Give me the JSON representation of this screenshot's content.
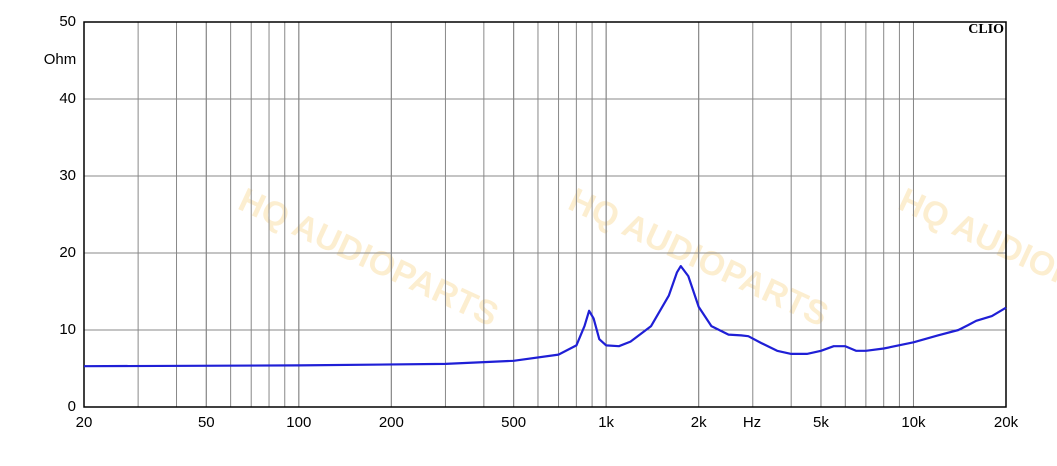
{
  "chart_data": {
    "type": "line",
    "brand": "CLIO",
    "watermark": "HQ AUDIOPARTS",
    "y_label": "Ohm",
    "x_label": "Hz",
    "log_x": true,
    "grid": true,
    "color": "#1f1fd6",
    "x": [
      20,
      100,
      300,
      500,
      700,
      800,
      850,
      880,
      910,
      950,
      1000,
      1100,
      1200,
      1400,
      1600,
      1700,
      1750,
      1850,
      2000,
      2200,
      2500,
      2750,
      2900,
      3200,
      3600,
      4000,
      4500,
      5000,
      5500,
      6000,
      6500,
      7000,
      8000,
      10000,
      12000,
      14000,
      15000,
      16000,
      18000,
      20000
    ],
    "values": [
      5.3,
      5.4,
      5.6,
      6.0,
      6.8,
      8.0,
      10.5,
      12.5,
      11.5,
      8.8,
      8.0,
      7.9,
      8.5,
      10.5,
      14.5,
      17.5,
      18.3,
      17.0,
      13.0,
      10.5,
      9.4,
      9.3,
      9.2,
      8.3,
      7.3,
      6.9,
      6.9,
      7.3,
      7.9,
      7.9,
      7.3,
      7.3,
      7.6,
      8.4,
      9.3,
      10.0,
      10.6,
      11.2,
      11.8,
      12.9
    ],
    "xlim": [
      20,
      20000
    ],
    "ylim": [
      0,
      50
    ],
    "xticks": [
      20,
      50,
      100,
      200,
      500,
      {
        "value": 1000,
        "label": "1k"
      },
      {
        "value": 2000,
        "label": "2k"
      },
      {
        "value": 5000,
        "label": "5k"
      },
      {
        "value": 10000,
        "label": "10k"
      },
      {
        "value": 20000,
        "label": "20k"
      }
    ],
    "yticks": [
      0,
      10,
      20,
      30,
      40,
      50
    ]
  }
}
